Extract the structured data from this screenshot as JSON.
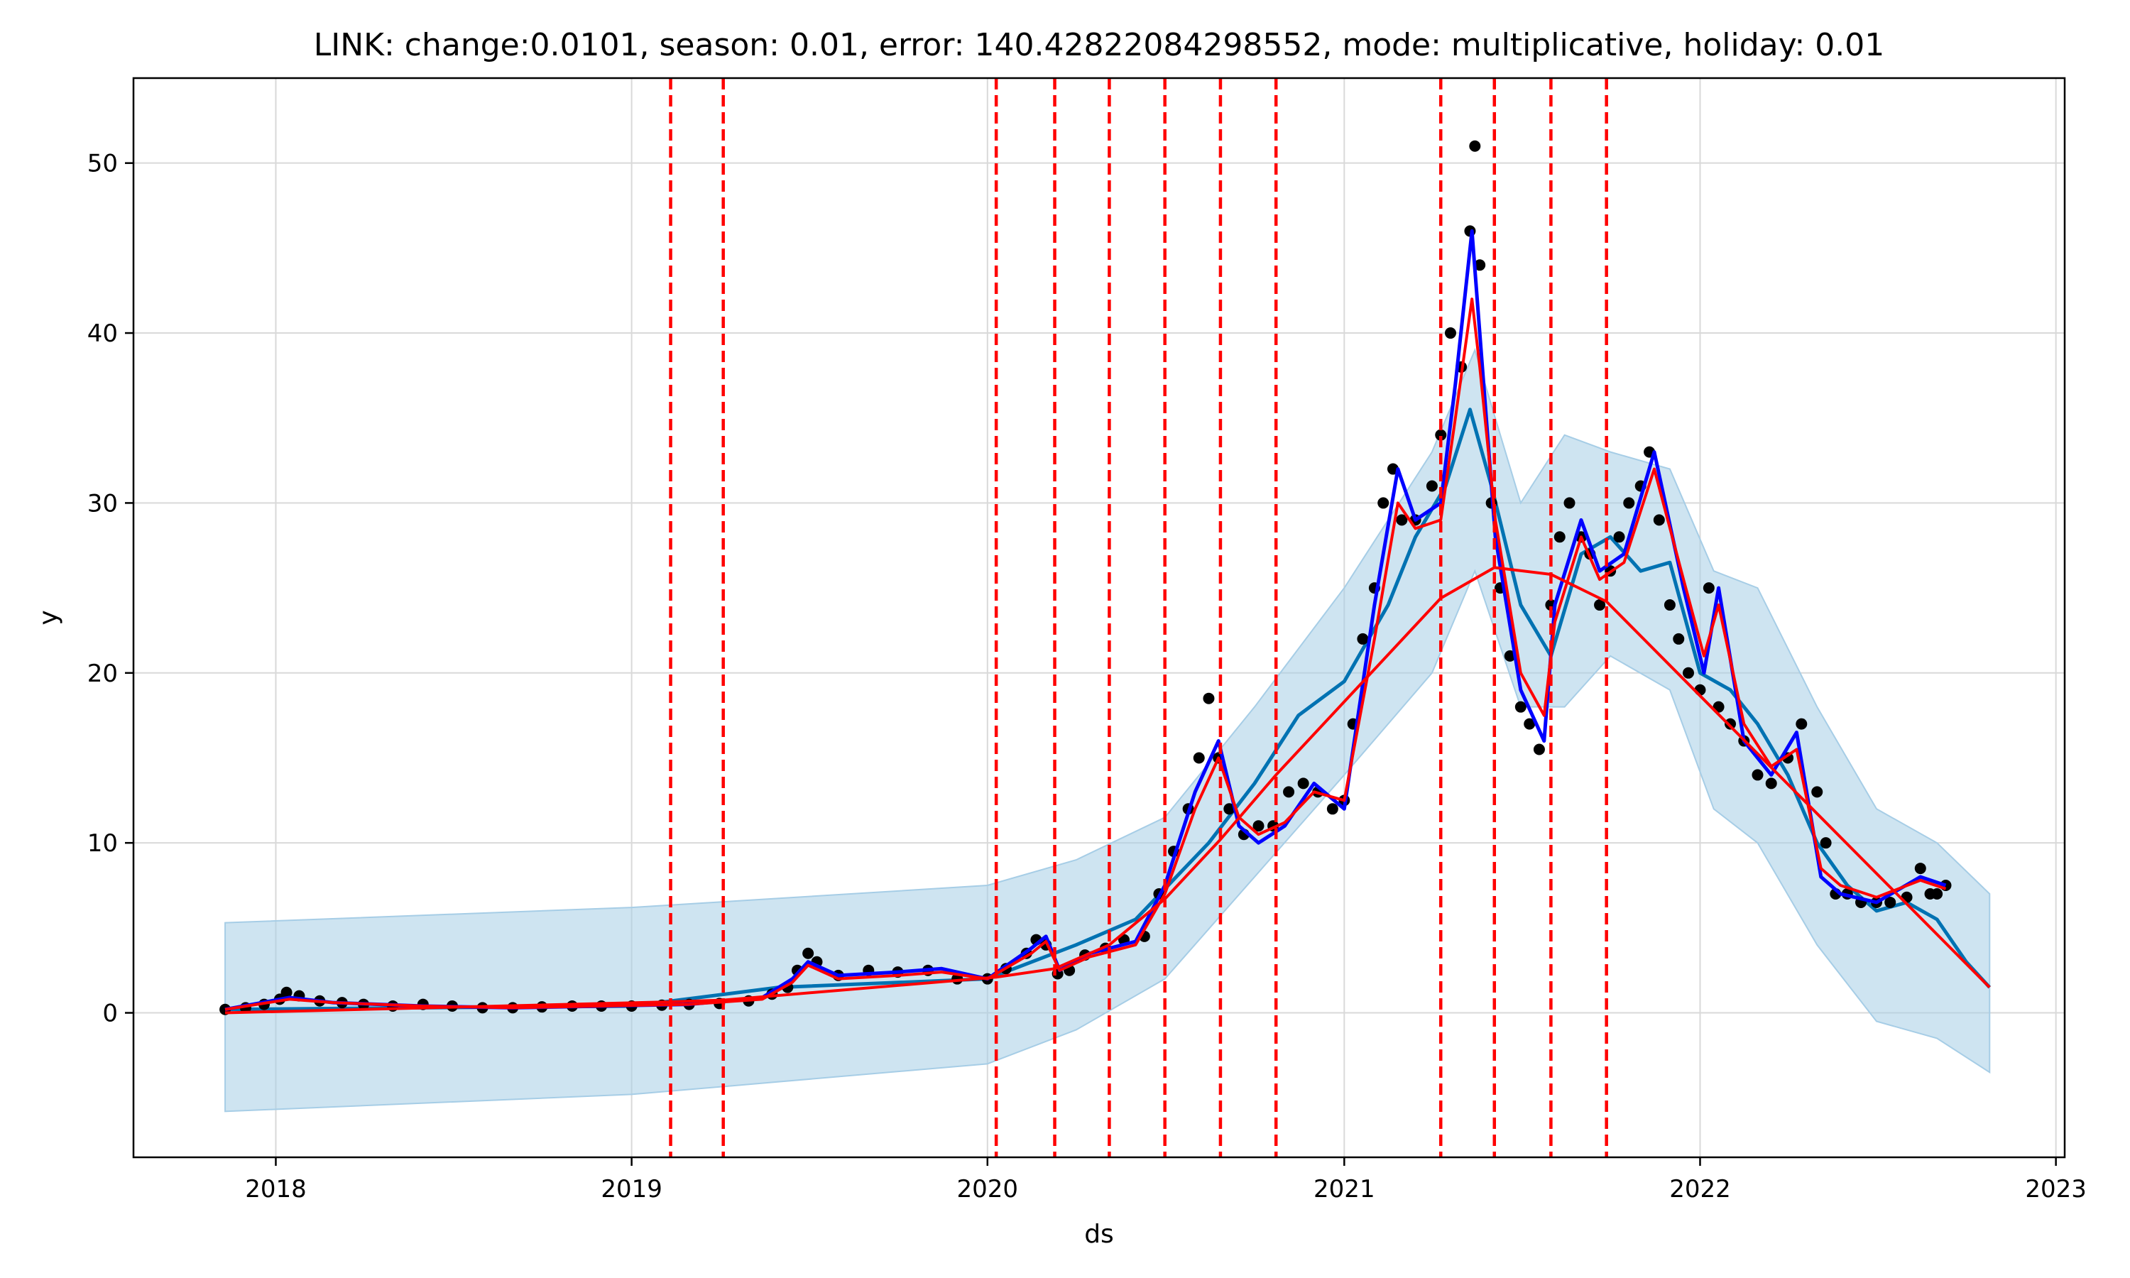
{
  "chart_data": {
    "type": "line",
    "title": "LINK: change:0.0101, season: 0.01, error: 140.42822084298552, mode: multiplicative, holiday: 0.01",
    "xlabel": "ds",
    "ylabel": "y",
    "x_ticks": [
      "2018",
      "2019",
      "2020",
      "2021",
      "2022",
      "2023"
    ],
    "y_ticks": [
      "0",
      "10",
      "20",
      "30",
      "40",
      "50"
    ],
    "xlim": [
      "2017-08-08",
      "2023-01-10"
    ],
    "ylim": [
      -8.5,
      55
    ],
    "grid": true,
    "colors": {
      "observed": "#000000",
      "forecast": "#0072b2",
      "uncertainty": "#a6cde6",
      "fit": "#0000ff",
      "trend": "#ff0000",
      "changepoint": "#ff0000"
    },
    "changepoints": [
      "2019-02-10",
      "2019-04-05",
      "2020-01-10",
      "2020-03-10",
      "2020-05-05",
      "2020-07-01",
      "2020-08-27",
      "2020-10-23",
      "2021-04-10",
      "2021-06-04",
      "2021-08-01",
      "2021-09-27"
    ],
    "series": [
      {
        "kind": "observed",
        "x": [
          "2017-11-10",
          "2017-12-01",
          "2017-12-20",
          "2018-01-05",
          "2018-01-12",
          "2018-01-25",
          "2018-02-15",
          "2018-03-10",
          "2018-04-01",
          "2018-05-01",
          "2018-06-01",
          "2018-07-01",
          "2018-08-01",
          "2018-09-01",
          "2018-10-01",
          "2018-11-01",
          "2018-12-01",
          "2019-01-01",
          "2019-02-01",
          "2019-03-01",
          "2019-04-01",
          "2019-05-01",
          "2019-05-25",
          "2019-06-10",
          "2019-06-20",
          "2019-07-01",
          "2019-07-10",
          "2019-08-01",
          "2019-09-01",
          "2019-10-01",
          "2019-11-01",
          "2019-12-01",
          "2020-01-01",
          "2020-01-20",
          "2020-02-10",
          "2020-02-20",
          "2020-03-01",
          "2020-03-13",
          "2020-03-25",
          "2020-04-10",
          "2020-05-01",
          "2020-05-20",
          "2020-06-10",
          "2020-06-25",
          "2020-07-10",
          "2020-07-25",
          "2020-08-05",
          "2020-08-15",
          "2020-08-25",
          "2020-09-05",
          "2020-09-20",
          "2020-10-05",
          "2020-10-20",
          "2020-11-05",
          "2020-11-20",
          "2020-12-05",
          "2020-12-20",
          "2021-01-01",
          "2021-01-10",
          "2021-01-20",
          "2021-02-01",
          "2021-02-10",
          "2021-02-20",
          "2021-03-01",
          "2021-03-15",
          "2021-04-01",
          "2021-04-10",
          "2021-04-20",
          "2021-05-01",
          "2021-05-10",
          "2021-05-15",
          "2021-05-20",
          "2021-06-01",
          "2021-06-10",
          "2021-06-20",
          "2021-07-01",
          "2021-07-10",
          "2021-07-20",
          "2021-08-01",
          "2021-08-10",
          "2021-08-20",
          "2021-09-01",
          "2021-09-10",
          "2021-09-20",
          "2021-10-01",
          "2021-10-10",
          "2021-10-20",
          "2021-11-01",
          "2021-11-10",
          "2021-11-20",
          "2021-12-01",
          "2021-12-10",
          "2021-12-20",
          "2022-01-01",
          "2022-01-10",
          "2022-01-20",
          "2022-02-01",
          "2022-02-15",
          "2022-03-01",
          "2022-03-15",
          "2022-04-01",
          "2022-04-15",
          "2022-05-01",
          "2022-05-10",
          "2022-05-20",
          "2022-06-01",
          "2022-06-15",
          "2022-07-01",
          "2022-07-15",
          "2022-08-01",
          "2022-08-15",
          "2022-08-25",
          "2022-09-01",
          "2022-09-10"
        ],
        "y": [
          0.2,
          0.3,
          0.5,
          0.8,
          1.2,
          1.0,
          0.7,
          0.6,
          0.5,
          0.4,
          0.5,
          0.4,
          0.3,
          0.3,
          0.35,
          0.4,
          0.4,
          0.4,
          0.45,
          0.5,
          0.55,
          0.7,
          1.1,
          1.5,
          2.5,
          3.5,
          3.0,
          2.2,
          2.5,
          2.4,
          2.5,
          2.0,
          2.0,
          2.6,
          3.5,
          4.3,
          4.0,
          2.3,
          2.5,
          3.4,
          3.8,
          4.3,
          4.5,
          7.0,
          9.5,
          12.0,
          15.0,
          18.5,
          15.0,
          12.0,
          10.5,
          11.0,
          11.0,
          13.0,
          13.5,
          13.0,
          12.0,
          12.5,
          17.0,
          22.0,
          25.0,
          30.0,
          32.0,
          29.0,
          29.0,
          31.0,
          34.0,
          40.0,
          38.0,
          46.0,
          51.0,
          44.0,
          30.0,
          25.0,
          21.0,
          18.0,
          17.0,
          15.5,
          24.0,
          28.0,
          30.0,
          28.0,
          27.0,
          24.0,
          26.0,
          28.0,
          30.0,
          31.0,
          33.0,
          29.0,
          24.0,
          22.0,
          20.0,
          19.0,
          25.0,
          18.0,
          17.0,
          16.0,
          14.0,
          13.5,
          15.0,
          17.0,
          13.0,
          10.0,
          7.0,
          7.0,
          6.5,
          6.5,
          6.5,
          6.8,
          8.5,
          7.0,
          7.0,
          7.5
        ]
      },
      {
        "kind": "fit",
        "x": [
          "2017-11-10",
          "2018-01-15",
          "2018-03-01",
          "2018-06-01",
          "2018-09-01",
          "2018-12-01",
          "2019-03-01",
          "2019-05-15",
          "2019-06-15",
          "2019-07-01",
          "2019-08-01",
          "2019-10-01",
          "2019-11-15",
          "2020-01-01",
          "2020-02-15",
          "2020-03-01",
          "2020-03-15",
          "2020-04-15",
          "2020-06-01",
          "2020-07-01",
          "2020-08-01",
          "2020-08-25",
          "2020-09-15",
          "2020-10-05",
          "2020-11-01",
          "2020-12-01",
          "2021-01-01",
          "2021-02-01",
          "2021-02-25",
          "2021-03-15",
          "2021-04-10",
          "2021-04-25",
          "2021-05-12",
          "2021-05-20",
          "2021-06-05",
          "2021-07-01",
          "2021-07-25",
          "2021-08-05",
          "2021-09-01",
          "2021-09-20",
          "2021-10-15",
          "2021-11-15",
          "2021-12-15",
          "2022-01-05",
          "2022-01-20",
          "2022-02-15",
          "2022-03-15",
          "2022-04-10",
          "2022-05-05",
          "2022-05-25",
          "2022-07-01",
          "2022-08-15",
          "2022-09-10"
        ],
        "y": [
          0.2,
          0.9,
          0.6,
          0.4,
          0.3,
          0.4,
          0.5,
          0.9,
          2.0,
          3.0,
          2.2,
          2.4,
          2.6,
          2.0,
          3.8,
          4.5,
          2.5,
          3.5,
          4.2,
          7.5,
          13.0,
          16.0,
          11.0,
          10.0,
          11.0,
          13.5,
          12.0,
          24.0,
          32.0,
          29.0,
          30.0,
          37.0,
          46.0,
          40.0,
          28.0,
          19.0,
          16.0,
          24.0,
          29.0,
          26.0,
          27.0,
          33.0,
          25.0,
          20.0,
          25.0,
          16.0,
          14.0,
          16.5,
          8.0,
          7.0,
          6.5,
          8.0,
          7.5
        ]
      },
      {
        "kind": "forecast",
        "x": [
          "2017-11-10",
          "2018-06-01",
          "2019-01-01",
          "2019-06-01",
          "2020-01-01",
          "2020-04-01",
          "2020-06-01",
          "2020-08-15",
          "2020-10-01",
          "2020-11-15",
          "2021-01-01",
          "2021-02-15",
          "2021-03-15",
          "2021-04-15",
          "2021-05-10",
          "2021-06-01",
          "2021-07-01",
          "2021-08-01",
          "2021-09-01",
          "2021-10-01",
          "2021-11-01",
          "2021-12-01",
          "2022-01-01",
          "2022-02-01",
          "2022-03-01",
          "2022-04-01",
          "2022-05-01",
          "2022-06-01",
          "2022-07-01",
          "2022-08-01",
          "2022-09-01",
          "2022-10-01",
          "2022-10-25"
        ],
        "y": [
          0.2,
          0.3,
          0.4,
          1.5,
          2.0,
          4.0,
          5.5,
          10.0,
          13.5,
          17.5,
          19.5,
          24.0,
          28.0,
          31.0,
          35.5,
          31.0,
          24.0,
          21.0,
          27.0,
          28.0,
          26.0,
          26.5,
          20.0,
          19.0,
          17.0,
          14.0,
          10.0,
          7.5,
          6.0,
          6.5,
          5.5,
          3.0,
          1.5
        ]
      },
      {
        "kind": "uncertainty_upper",
        "x": [
          "2017-11-10",
          "2019-01-01",
          "2020-01-01",
          "2020-04-01",
          "2020-07-01",
          "2020-10-01",
          "2021-01-01",
          "2021-04-01",
          "2021-05-15",
          "2021-07-01",
          "2021-08-15",
          "2021-10-01",
          "2021-12-01",
          "2022-01-15",
          "2022-03-01",
          "2022-05-01",
          "2022-07-01",
          "2022-09-01",
          "2022-10-25"
        ],
        "y": [
          5.3,
          6.2,
          7.5,
          9.0,
          11.5,
          18.0,
          25.0,
          33.0,
          39.0,
          30.0,
          34.0,
          33.0,
          32.0,
          26.0,
          25.0,
          18.0,
          12.0,
          10.0,
          7.0
        ]
      },
      {
        "kind": "uncertainty_lower",
        "x": [
          "2017-11-10",
          "2019-01-01",
          "2020-01-01",
          "2020-04-01",
          "2020-07-01",
          "2020-10-01",
          "2021-01-01",
          "2021-04-01",
          "2021-05-15",
          "2021-07-01",
          "2021-08-15",
          "2021-10-01",
          "2021-12-01",
          "2022-01-15",
          "2022-03-01",
          "2022-05-01",
          "2022-07-01",
          "2022-09-01",
          "2022-10-25"
        ],
        "y": [
          -5.8,
          -4.8,
          -3.0,
          -1.0,
          2.0,
          8.0,
          14.0,
          20.0,
          26.0,
          18.0,
          18.0,
          21.0,
          19.0,
          12.0,
          10.0,
          4.0,
          -0.5,
          -1.5,
          -3.5
        ]
      },
      {
        "kind": "trend",
        "x": [
          "2017-11-10",
          "2019-02-10",
          "2019-04-05",
          "2020-01-10",
          "2020-03-10",
          "2020-05-05",
          "2020-07-01",
          "2020-08-27",
          "2020-10-23",
          "2021-04-10",
          "2021-06-04",
          "2021-08-01",
          "2021-09-27",
          "2022-10-25"
        ],
        "y": [
          0.0,
          0.65,
          0.75,
          2.1,
          2.6,
          4.0,
          6.7,
          10.2,
          14.0,
          24.4,
          26.2,
          25.8,
          24.2,
          1.5
        ]
      },
      {
        "kind": "trend_fit",
        "x": [
          "2017-11-10",
          "2018-01-15",
          "2018-03-01",
          "2018-06-01",
          "2018-09-01",
          "2018-12-01",
          "2019-03-01",
          "2019-05-15",
          "2019-06-15",
          "2019-07-01",
          "2019-08-01",
          "2019-10-01",
          "2019-11-15",
          "2020-01-01",
          "2020-02-15",
          "2020-03-01",
          "2020-03-15",
          "2020-04-15",
          "2020-06-01",
          "2020-07-01",
          "2020-08-01",
          "2020-08-25",
          "2020-09-15",
          "2020-10-05",
          "2020-11-01",
          "2020-12-01",
          "2021-01-01",
          "2021-02-01",
          "2021-02-25",
          "2021-03-15",
          "2021-04-10",
          "2021-04-25",
          "2021-05-12",
          "2021-05-20",
          "2021-06-05",
          "2021-07-01",
          "2021-07-25",
          "2021-08-05",
          "2021-09-01",
          "2021-09-20",
          "2021-10-15",
          "2021-11-15",
          "2021-12-15",
          "2022-01-05",
          "2022-01-20",
          "2022-02-15",
          "2022-03-15",
          "2022-04-10",
          "2022-05-05",
          "2022-05-25",
          "2022-07-01",
          "2022-08-15",
          "2022-09-10"
        ],
        "y": [
          0.2,
          0.8,
          0.6,
          0.4,
          0.3,
          0.4,
          0.5,
          0.8,
          1.8,
          2.8,
          2.0,
          2.2,
          2.4,
          2.0,
          3.5,
          4.2,
          2.5,
          3.3,
          4.0,
          7.0,
          12.0,
          15.0,
          11.5,
          10.5,
          11.2,
          13.0,
          12.5,
          22.0,
          30.0,
          28.5,
          29.0,
          35.0,
          42.0,
          38.0,
          29.0,
          20.0,
          17.5,
          23.0,
          28.0,
          25.5,
          26.5,
          32.0,
          25.5,
          21.0,
          24.0,
          17.0,
          14.5,
          15.5,
          8.5,
          7.5,
          6.8,
          7.8,
          7.3
        ]
      }
    ]
  }
}
